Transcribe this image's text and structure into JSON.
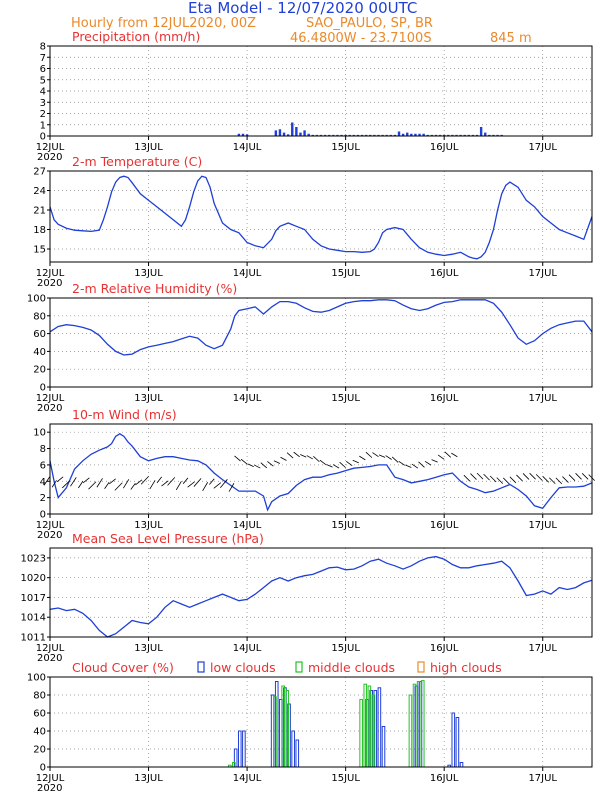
{
  "header": {
    "title": "Eta Model - 12/07/2020 00UTC",
    "subtitle_left": "Hourly from 12JUL2020, 00Z",
    "location": "SAO_PAULO, SP, BR",
    "coords": "46.4800W - 23.7100S",
    "elevation": "845  m"
  },
  "colors": {
    "title": "#1f3fd6",
    "subtitle": "#ea8a2b",
    "panel_title": "#e83232",
    "series": "#1f3fd6",
    "low": "#1f3fd6",
    "middle": "#22c322",
    "high": "#ea8a2b"
  },
  "x_axis": {
    "ticks": [
      "12JUL",
      "13JUL",
      "14JUL",
      "15JUL",
      "16JUL",
      "17JUL"
    ],
    "year": "2020",
    "range_hours": [
      0,
      132
    ]
  },
  "chart_data": [
    {
      "type": "bar",
      "title": "Precipitation (mm/h)",
      "ylim": [
        0,
        8
      ],
      "yticks": [
        "0",
        "1",
        "2",
        "3",
        "4",
        "5",
        "6",
        "7",
        "8"
      ],
      "x": [
        46,
        47,
        48,
        55,
        56,
        57,
        58,
        59,
        60,
        61,
        62,
        63,
        64,
        65,
        66,
        67,
        68,
        69,
        70,
        71,
        72,
        73,
        74,
        75,
        76,
        77,
        78,
        79,
        80,
        81,
        82,
        83,
        84,
        85,
        86,
        87,
        88,
        89,
        90,
        91,
        92,
        93,
        94,
        95,
        96,
        97,
        98,
        99,
        100,
        101,
        102,
        103,
        104,
        105,
        106,
        107,
        108,
        109,
        110
      ],
      "values": [
        0.2,
        0.2,
        0.15,
        0.5,
        0.6,
        0.3,
        0.15,
        1.2,
        0.8,
        0.3,
        0.5,
        0.2,
        0.1,
        0.1,
        0.1,
        0.1,
        0.1,
        0.1,
        0.1,
        0.1,
        0.1,
        0.1,
        0.1,
        0.1,
        0.1,
        0.1,
        0.1,
        0.1,
        0.1,
        0.1,
        0.1,
        0.1,
        0.1,
        0.4,
        0.2,
        0.3,
        0.2,
        0.2,
        0.2,
        0.2,
        0.1,
        0.1,
        0.1,
        0.1,
        0.1,
        0.1,
        0.1,
        0.1,
        0.1,
        0.1,
        0.1,
        0.1,
        0.1,
        0.8,
        0.3,
        0.1,
        0.1,
        0.1,
        0.1
      ]
    },
    {
      "type": "line",
      "title": "2-m Temperature (C)",
      "ylim": [
        13,
        27
      ],
      "yticks": [
        "15",
        "18",
        "21",
        "24",
        "27"
      ],
      "x": [
        0,
        1,
        2,
        4,
        6,
        8,
        10,
        12,
        13,
        14,
        15,
        16,
        17,
        18,
        19,
        20,
        22,
        24,
        26,
        28,
        30,
        32,
        33,
        34,
        35,
        36,
        37,
        38,
        39,
        40,
        42,
        44,
        46,
        48,
        50,
        52,
        54,
        55,
        56,
        58,
        60,
        62,
        64,
        66,
        68,
        70,
        72,
        74,
        76,
        78,
        79,
        80,
        81,
        82,
        84,
        86,
        88,
        90,
        92,
        94,
        96,
        98,
        100,
        102,
        103,
        104,
        105,
        106,
        107,
        108,
        109,
        110,
        111,
        112,
        114,
        116,
        118,
        120,
        122,
        124,
        126,
        128,
        130,
        132
      ],
      "values": [
        21.5,
        19.5,
        18.8,
        18.2,
        17.9,
        17.8,
        17.7,
        17.9,
        19.5,
        21.5,
        23.8,
        25.3,
        26.0,
        26.2,
        26.0,
        25.2,
        23.5,
        22.5,
        21.5,
        20.5,
        19.5,
        18.5,
        19.5,
        21.5,
        23.8,
        25.5,
        26.2,
        26.0,
        24.5,
        22.0,
        19.0,
        18.0,
        17.5,
        16.0,
        15.5,
        15.2,
        16.5,
        17.8,
        18.5,
        19.0,
        18.5,
        18.0,
        16.5,
        15.5,
        15.0,
        14.8,
        14.6,
        14.6,
        14.5,
        14.6,
        15.0,
        16.0,
        17.5,
        18.0,
        18.3,
        18.0,
        16.5,
        15.2,
        14.5,
        14.2,
        14.0,
        14.2,
        14.5,
        13.8,
        13.6,
        13.5,
        13.8,
        14.5,
        16.0,
        18.0,
        21.0,
        23.5,
        24.8,
        25.3,
        24.5,
        22.5,
        21.5,
        20.0,
        19.0,
        18.0,
        17.5,
        17.0,
        16.5,
        20.0
      ]
    },
    {
      "type": "line",
      "title": "2-m Relative Humidity (%)",
      "ylim": [
        0,
        100
      ],
      "yticks": [
        "0",
        "20",
        "40",
        "60",
        "80",
        "100"
      ],
      "x": [
        0,
        2,
        4,
        6,
        8,
        10,
        12,
        14,
        16,
        18,
        20,
        22,
        24,
        26,
        28,
        30,
        32,
        34,
        36,
        38,
        40,
        42,
        44,
        45,
        46,
        48,
        50,
        52,
        54,
        56,
        58,
        60,
        62,
        64,
        66,
        68,
        70,
        72,
        74,
        76,
        78,
        80,
        82,
        84,
        86,
        88,
        90,
        92,
        94,
        96,
        98,
        100,
        102,
        104,
        106,
        108,
        110,
        112,
        114,
        116,
        118,
        120,
        122,
        124,
        126,
        128,
        130,
        132
      ],
      "values": [
        62,
        68,
        70,
        69,
        67,
        64,
        58,
        48,
        40,
        36,
        37,
        42,
        45,
        47,
        49,
        51,
        54,
        57,
        55,
        47,
        43,
        47,
        65,
        80,
        86,
        88,
        90,
        82,
        90,
        96,
        96,
        94,
        89,
        85,
        84,
        86,
        90,
        94,
        96,
        97,
        97,
        98,
        98,
        97,
        92,
        88,
        86,
        88,
        92,
        95,
        96,
        98,
        98,
        98,
        98,
        94,
        84,
        70,
        55,
        48,
        52,
        60,
        66,
        70,
        72,
        74,
        74,
        62
      ]
    },
    {
      "type": "line",
      "title": "10-m Wind (m/s)",
      "ylim": [
        0,
        11
      ],
      "yticks": [
        "0",
        "2",
        "4",
        "6",
        "8",
        "10"
      ],
      "x": [
        0,
        1,
        2,
        4,
        6,
        8,
        10,
        12,
        14,
        15,
        16,
        17,
        18,
        19,
        20,
        22,
        24,
        26,
        28,
        30,
        32,
        34,
        36,
        38,
        40,
        42,
        44,
        46,
        48,
        50,
        52,
        53,
        54,
        56,
        58,
        60,
        62,
        64,
        66,
        68,
        70,
        72,
        74,
        76,
        78,
        80,
        82,
        84,
        86,
        88,
        90,
        92,
        94,
        96,
        98,
        100,
        102,
        104,
        106,
        108,
        110,
        112,
        114,
        116,
        118,
        120,
        122,
        124,
        126,
        128,
        130,
        132
      ],
      "values": [
        6.5,
        4.0,
        2.0,
        3.2,
        5.5,
        6.5,
        7.3,
        7.8,
        8.2,
        8.6,
        9.5,
        9.8,
        9.5,
        8.8,
        8.3,
        7.0,
        6.5,
        6.8,
        7.0,
        7.0,
        6.8,
        6.6,
        6.5,
        6.0,
        5.0,
        4.2,
        3.5,
        2.8,
        2.8,
        2.8,
        2.2,
        0.5,
        1.5,
        2.2,
        2.5,
        3.5,
        4.2,
        4.5,
        4.5,
        4.8,
        5.0,
        5.3,
        5.6,
        5.7,
        5.8,
        6.0,
        6.0,
        4.5,
        4.2,
        3.8,
        4.0,
        4.2,
        4.5,
        4.8,
        5.0,
        4.0,
        3.3,
        3.0,
        2.6,
        2.8,
        3.2,
        3.6,
        3.0,
        2.2,
        1.0,
        0.7,
        2.0,
        3.2,
        3.3,
        3.3,
        3.4,
        3.8
      ]
    },
    {
      "type": "line",
      "title": "Mean Sea Level Pressure (hPa)",
      "ylim": [
        1011,
        1024.5
      ],
      "yticks": [
        "1011",
        "1014",
        "1017",
        "1020",
        "1023"
      ],
      "x": [
        0,
        2,
        4,
        6,
        8,
        10,
        12,
        14,
        16,
        18,
        20,
        22,
        24,
        26,
        28,
        30,
        32,
        34,
        36,
        38,
        40,
        42,
        44,
        46,
        48,
        50,
        52,
        54,
        56,
        58,
        60,
        62,
        64,
        66,
        68,
        70,
        72,
        74,
        76,
        78,
        80,
        82,
        84,
        86,
        88,
        90,
        92,
        94,
        96,
        98,
        100,
        102,
        104,
        106,
        108,
        110,
        112,
        114,
        116,
        118,
        120,
        122,
        124,
        126,
        128,
        130,
        132
      ],
      "values": [
        1015.2,
        1015.4,
        1015.0,
        1015.2,
        1014.6,
        1013.5,
        1012.0,
        1011.0,
        1011.5,
        1012.5,
        1013.5,
        1013.2,
        1013.0,
        1014.0,
        1015.5,
        1016.5,
        1016.0,
        1015.5,
        1016.0,
        1016.5,
        1017.0,
        1017.5,
        1017.0,
        1016.5,
        1016.7,
        1017.5,
        1018.5,
        1019.5,
        1020.0,
        1019.5,
        1020.0,
        1020.3,
        1020.5,
        1021.0,
        1021.5,
        1021.6,
        1021.2,
        1021.3,
        1021.8,
        1022.5,
        1022.8,
        1022.2,
        1021.8,
        1021.3,
        1021.8,
        1022.5,
        1023.0,
        1023.2,
        1022.8,
        1022.0,
        1021.5,
        1021.5,
        1021.8,
        1022.0,
        1022.2,
        1022.5,
        1021.5,
        1019.5,
        1017.3,
        1017.5,
        1018.0,
        1017.5,
        1018.5,
        1018.2,
        1018.5,
        1019.2,
        1019.6
      ]
    },
    {
      "type": "bar",
      "title": "Cloud Cover (%)",
      "legend": [
        "low clouds",
        "middle clouds",
        "high clouds"
      ],
      "ylim": [
        0,
        100
      ],
      "yticks": [
        "0",
        "20",
        "40",
        "60",
        "80",
        "100"
      ],
      "series": [
        {
          "name": "low clouds",
          "x": [
            45,
            46,
            47,
            54,
            55,
            56,
            57,
            58,
            59,
            60,
            77,
            78,
            79,
            80,
            81,
            89,
            90,
            97,
            98,
            99,
            100
          ],
          "values": [
            20,
            40,
            40,
            80,
            95,
            75,
            88,
            70,
            40,
            30,
            75,
            85,
            85,
            88,
            45,
            90,
            95,
            2,
            60,
            55,
            5
          ]
        },
        {
          "name": "middle clouds",
          "x": [
            44,
            45,
            55,
            57,
            58,
            76,
            77,
            78,
            79,
            88,
            89,
            90,
            91
          ],
          "values": [
            2,
            5,
            78,
            90,
            85,
            75,
            92,
            90,
            80,
            80,
            92,
            95,
            96
          ]
        },
        {
          "name": "high clouds",
          "x": [],
          "values": []
        }
      ]
    }
  ]
}
